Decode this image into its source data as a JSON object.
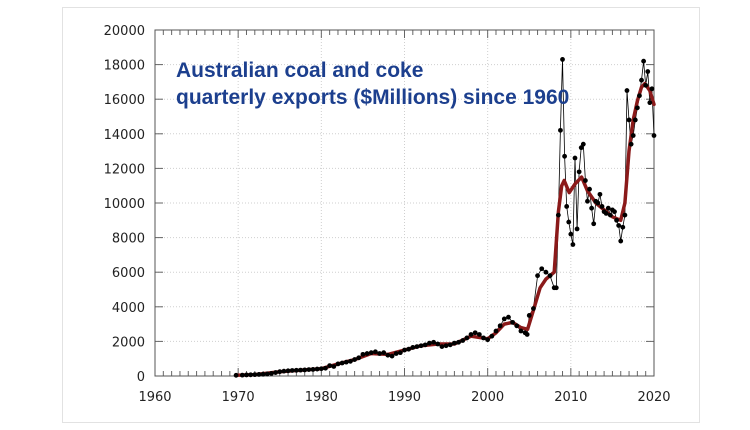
{
  "chart_data": {
    "type": "line",
    "title_lines": [
      "Australian coal and coke",
      "quarterly exports ($Millions) since 1960"
    ],
    "xlabel": "",
    "ylabel": "",
    "xlim": [
      1960,
      2020
    ],
    "ylim": [
      0,
      20000
    ],
    "xticks": [
      1960,
      1970,
      1980,
      1990,
      2000,
      2010,
      2020
    ],
    "yticks": [
      0,
      2000,
      4000,
      6000,
      8000,
      10000,
      12000,
      14000,
      16000,
      18000,
      20000
    ],
    "grid": true,
    "colors": {
      "raw": "#000000",
      "smoothed": "#8b1a1a",
      "title": "#1c3f8e"
    },
    "series": [
      {
        "kind": "raw-points",
        "x": [
          1969.75,
          1970.5,
          1971,
          1971.5,
          1972,
          1972.5,
          1973,
          1973.5,
          1974,
          1974.5,
          1975,
          1975.5,
          1976,
          1976.5,
          1977,
          1977.5,
          1978,
          1978.5,
          1979,
          1979.5,
          1980,
          1980.5,
          1981,
          1981.5,
          1982,
          1982.5,
          1983,
          1983.5,
          1984,
          1984.5,
          1985,
          1985.5,
          1986,
          1986.5,
          1987,
          1987.5,
          1988,
          1988.5,
          1989,
          1989.5,
          1990,
          1990.5,
          1991,
          1991.5,
          1992,
          1992.5,
          1993,
          1993.5,
          1994,
          1994.5,
          1995,
          1995.5,
          1996,
          1996.5,
          1997,
          1997.5,
          1998,
          1998.5,
          1999,
          1999.5,
          2000,
          2000.5,
          2001,
          2001.5,
          2002,
          2002.5,
          2003,
          2003.5,
          2004,
          2004.5,
          2004.75,
          2005,
          2005.5,
          2006,
          2006.5,
          2007,
          2007.5,
          2008,
          2008.25,
          2008.5,
          2008.75,
          2009,
          2009.25,
          2009.5,
          2009.75,
          2010,
          2010.25,
          2010.5,
          2010.75,
          2011,
          2011.25,
          2011.5,
          2011.75,
          2012,
          2012.25,
          2012.5,
          2012.75,
          2013,
          2013.25,
          2013.5,
          2013.75,
          2014,
          2014.25,
          2014.5,
          2014.75,
          2015,
          2015.25,
          2015.5,
          2015.75,
          2016,
          2016.25,
          2016.5,
          2016.75,
          2017,
          2017.25,
          2017.5,
          2017.75,
          2018,
          2018.25,
          2018.5,
          2018.75,
          2019,
          2019.25,
          2019.5,
          2019.75,
          2020
        ],
        "y": [
          40,
          50,
          60,
          70,
          80,
          90,
          100,
          120,
          150,
          200,
          250,
          280,
          300,
          320,
          330,
          340,
          350,
          370,
          380,
          400,
          420,
          450,
          600,
          550,
          700,
          750,
          800,
          850,
          950,
          1050,
          1250,
          1300,
          1350,
          1400,
          1300,
          1350,
          1200,
          1150,
          1300,
          1350,
          1500,
          1550,
          1650,
          1700,
          1750,
          1800,
          1900,
          1950,
          1850,
          1700,
          1750,
          1800,
          1900,
          1950,
          2050,
          2200,
          2400,
          2500,
          2400,
          2200,
          2100,
          2300,
          2600,
          2900,
          3300,
          3400,
          3100,
          2900,
          2600,
          2500,
          2400,
          3500,
          3900,
          5800,
          6200,
          6000,
          5800,
          5100,
          5100,
          9300,
          14200,
          18300,
          12700,
          9800,
          8900,
          8200,
          7600,
          12600,
          8500,
          11800,
          13200,
          13400,
          11300,
          10100,
          10800,
          9700,
          8800,
          10100,
          10000,
          10500,
          9800,
          9500,
          9400,
          9700,
          9300,
          9600,
          9500,
          9000,
          8700,
          7800,
          8600,
          9300,
          16500,
          14800,
          13400,
          13900,
          14800,
          15500,
          16200,
          17100,
          18200,
          16800,
          17600,
          15800,
          16600,
          13900
        ]
      },
      {
        "kind": "smoothed-trend",
        "x": [
          1969.75,
          1972,
          1975,
          1978,
          1980,
          1982,
          1984,
          1986,
          1988,
          1990,
          1992,
          1994,
          1996,
          1998,
          2000,
          2001,
          2002,
          2003,
          2004,
          2004.8,
          2005.5,
          2006.3,
          2007,
          2008,
          2008.5,
          2008.9,
          2009.2,
          2009.8,
          2010.5,
          2011.3,
          2012,
          2013,
          2014,
          2015,
          2016,
          2016.5,
          2017,
          2017.5,
          2018,
          2018.5,
          2018.9,
          2019.5,
          2020
        ],
        "y": [
          40,
          80,
          250,
          350,
          420,
          700,
          950,
          1300,
          1250,
          1500,
          1750,
          1850,
          1850,
          2300,
          2150,
          2500,
          3000,
          3100,
          2800,
          2700,
          3800,
          5100,
          5600,
          6000,
          9500,
          11000,
          11300,
          10600,
          11100,
          11500,
          10700,
          10000,
          9600,
          9200,
          9000,
          10000,
          13000,
          14800,
          15900,
          16700,
          16900,
          16500,
          15700
        ]
      }
    ]
  }
}
